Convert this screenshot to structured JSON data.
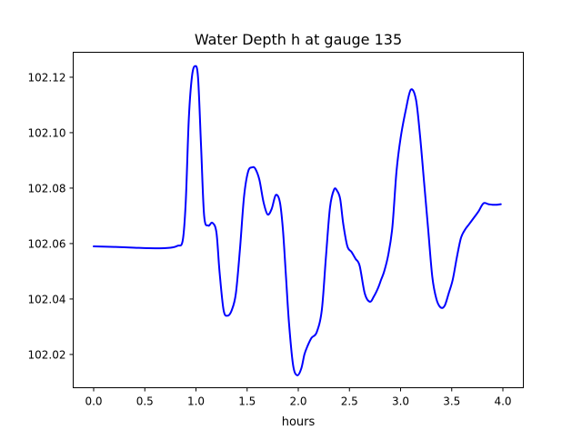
{
  "chart_data": {
    "type": "line",
    "title": "Water Depth h at gauge 135",
    "xlabel": "hours",
    "ylabel": "",
    "xlim": [
      -0.2,
      4.2
    ],
    "ylim": [
      102.008,
      102.129
    ],
    "xticks": [
      0.0,
      0.5,
      1.0,
      1.5,
      2.0,
      2.5,
      3.0,
      3.5,
      4.0
    ],
    "xtick_labels": [
      "0.0",
      "0.5",
      "1.0",
      "1.5",
      "2.0",
      "2.5",
      "3.0",
      "3.5",
      "4.0"
    ],
    "yticks": [
      102.02,
      102.04,
      102.06,
      102.08,
      102.1,
      102.12
    ],
    "ytick_labels": [
      "102.02",
      "102.04",
      "102.06",
      "102.08",
      "102.10",
      "102.12"
    ],
    "grid": false,
    "legend": "none",
    "series": [
      {
        "color": "#0000ff",
        "x": [
          0.0,
          0.2,
          0.4,
          0.6,
          0.75,
          0.82,
          0.87,
          0.9,
          0.93,
          0.96,
          0.99,
          1.02,
          1.05,
          1.08,
          1.12,
          1.16,
          1.2,
          1.23,
          1.27,
          1.31,
          1.35,
          1.39,
          1.43,
          1.47,
          1.51,
          1.55,
          1.58,
          1.62,
          1.66,
          1.7,
          1.74,
          1.78,
          1.82,
          1.85,
          1.88,
          1.91,
          1.95,
          1.99,
          2.03,
          2.06,
          2.09,
          2.13,
          2.18,
          2.23,
          2.27,
          2.31,
          2.35,
          2.38,
          2.41,
          2.44,
          2.48,
          2.52,
          2.56,
          2.6,
          2.65,
          2.7,
          2.74,
          2.78,
          2.81,
          2.84,
          2.88,
          2.92,
          2.96,
          3.0,
          3.05,
          3.1,
          3.15,
          3.19,
          3.23,
          3.27,
          3.31,
          3.35,
          3.39,
          3.43,
          3.47,
          3.51,
          3.55,
          3.59,
          3.63,
          3.67,
          3.71,
          3.76,
          3.81,
          3.86,
          3.9,
          3.94,
          3.98
        ],
        "y": [
          102.059,
          102.0588,
          102.0585,
          102.0583,
          102.0585,
          102.0592,
          102.061,
          102.075,
          102.105,
          102.12,
          102.124,
          102.12,
          102.095,
          102.07,
          102.0665,
          102.0675,
          102.064,
          102.05,
          102.036,
          102.034,
          102.036,
          102.042,
          102.058,
          102.077,
          102.086,
          102.0875,
          102.087,
          102.083,
          102.075,
          102.0705,
          102.0725,
          102.0775,
          102.075,
          102.065,
          102.048,
          102.031,
          102.016,
          102.0125,
          102.015,
          102.02,
          102.023,
          102.026,
          102.028,
          102.036,
          102.055,
          102.073,
          102.0795,
          102.079,
          102.076,
          102.067,
          102.059,
          102.057,
          102.0545,
          102.052,
          102.042,
          102.039,
          102.041,
          102.044,
          102.047,
          102.05,
          102.056,
          102.066,
          102.086,
          102.098,
          102.108,
          102.1155,
          102.112,
          102.099,
          102.082,
          102.065,
          102.048,
          102.04,
          102.037,
          102.0375,
          102.042,
          102.047,
          102.055,
          102.062,
          102.065,
          102.067,
          102.069,
          102.0715,
          102.0745,
          102.0742,
          102.074,
          102.074,
          102.0742
        ]
      }
    ]
  }
}
